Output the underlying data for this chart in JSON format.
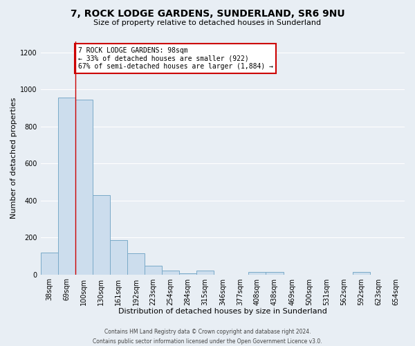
{
  "title": "7, ROCK LODGE GARDENS, SUNDERLAND, SR6 9NU",
  "subtitle": "Size of property relative to detached houses in Sunderland",
  "xlabel": "Distribution of detached houses by size in Sunderland",
  "ylabel": "Number of detached properties",
  "footer_line1": "Contains HM Land Registry data © Crown copyright and database right 2024.",
  "footer_line2": "Contains public sector information licensed under the Open Government Licence v3.0.",
  "bin_labels": [
    "38sqm",
    "69sqm",
    "100sqm",
    "130sqm",
    "161sqm",
    "192sqm",
    "223sqm",
    "254sqm",
    "284sqm",
    "315sqm",
    "346sqm",
    "377sqm",
    "408sqm",
    "438sqm",
    "469sqm",
    "500sqm",
    "531sqm",
    "562sqm",
    "592sqm",
    "623sqm",
    "654sqm"
  ],
  "bar_heights": [
    120,
    955,
    945,
    430,
    185,
    115,
    47,
    20,
    5,
    20,
    0,
    0,
    15,
    12,
    0,
    0,
    0,
    0,
    12,
    0,
    0
  ],
  "bar_color": "#ccdded",
  "bar_edge_color": "#7aaac8",
  "ylim": [
    0,
    1260
  ],
  "yticks": [
    0,
    200,
    400,
    600,
    800,
    1000,
    1200
  ],
  "property_line_x": 2.0,
  "property_line_color": "#cc0000",
  "annotation_text": "7 ROCK LODGE GARDENS: 98sqm\n← 33% of detached houses are smaller (922)\n67% of semi-detached houses are larger (1,884) →",
  "annotation_box_color": "#ffffff",
  "annotation_box_edge_color": "#cc0000",
  "background_color": "#e8eef4",
  "grid_color": "#ffffff",
  "title_fontsize": 10,
  "subtitle_fontsize": 8,
  "axis_label_fontsize": 8,
  "tick_fontsize": 7,
  "annotation_fontsize": 7,
  "footer_fontsize": 5.5
}
